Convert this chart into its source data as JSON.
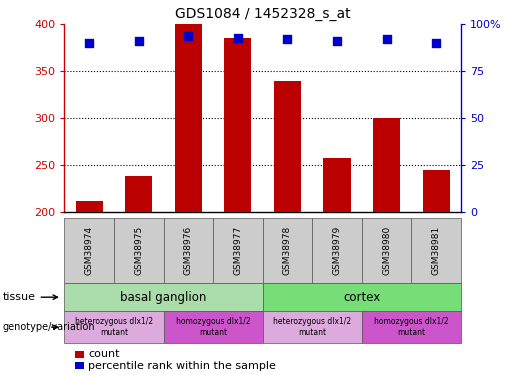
{
  "title": "GDS1084 / 1452328_s_at",
  "samples": [
    "GSM38974",
    "GSM38975",
    "GSM38976",
    "GSM38977",
    "GSM38978",
    "GSM38979",
    "GSM38980",
    "GSM38981"
  ],
  "counts": [
    212,
    238,
    400,
    385,
    340,
    258,
    300,
    245
  ],
  "percentiles": [
    90,
    91,
    94,
    93,
    92,
    91,
    92,
    90
  ],
  "ylim_left": [
    200,
    400
  ],
  "ylim_right": [
    0,
    100
  ],
  "yticks_left": [
    200,
    250,
    300,
    350,
    400
  ],
  "yticks_right": [
    0,
    25,
    50,
    75,
    100
  ],
  "ytick_labels_right": [
    "0",
    "25",
    "50",
    "75",
    "100%"
  ],
  "bar_color": "#bb0000",
  "dot_color": "#0000cc",
  "bar_width": 0.55,
  "tissue_row": [
    {
      "label": "basal ganglion",
      "start": 0,
      "end": 4,
      "color": "#aaddaa"
    },
    {
      "label": "cortex",
      "start": 4,
      "end": 8,
      "color": "#77dd77"
    }
  ],
  "genotype_row": [
    {
      "label": "heterozygous dlx1/2\nmutant",
      "start": 0,
      "end": 2,
      "color": "#ddaadd"
    },
    {
      "label": "homozygous dlx1/2\nmutant",
      "start": 2,
      "end": 4,
      "color": "#cc55cc"
    },
    {
      "label": "heterozygous dlx1/2\nmutant",
      "start": 4,
      "end": 6,
      "color": "#ddaadd"
    },
    {
      "label": "homozygous dlx1/2\nmutant",
      "start": 6,
      "end": 8,
      "color": "#cc55cc"
    }
  ],
  "legend_count_color": "#bb0000",
  "legend_percentile_color": "#0000cc",
  "tissue_label": "tissue",
  "genotype_label": "genotype/variation",
  "legend_count_text": "count",
  "legend_percentile_text": "percentile rank within the sample",
  "label_color_left": "#cc0000",
  "label_color_right": "#0000cc",
  "sample_box_color": "#cccccc",
  "grid_dotted_values": [
    250,
    300,
    350
  ]
}
